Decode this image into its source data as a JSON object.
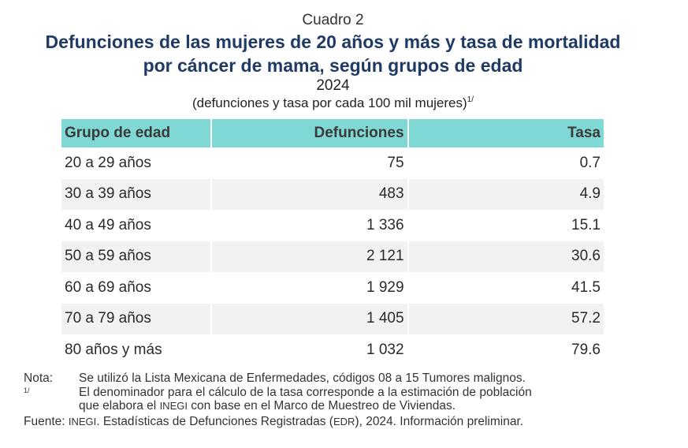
{
  "header": {
    "cuadro": "Cuadro 2",
    "title_line1": "Defunciones de las mujeres de 20 años y más y tasa de mortalidad",
    "title_line2": "por cáncer de mama, según grupos de edad",
    "year": "2024",
    "units": "(defunciones y tasa por cada 100 mil mujeres)",
    "units_ref": "1/"
  },
  "table": {
    "columns": [
      "Grupo de edad",
      "Defunciones",
      "Tasa"
    ],
    "rows": [
      {
        "grupo": "20 a 29 años",
        "defunciones": "75",
        "tasa": "0.7"
      },
      {
        "grupo": "30 a 39 años",
        "defunciones": "483",
        "tasa": "4.9"
      },
      {
        "grupo": "40 a 49 años",
        "defunciones": "1 336",
        "tasa": "15.1"
      },
      {
        "grupo": "50 a 59 años",
        "defunciones": "2 121",
        "tasa": "30.6"
      },
      {
        "grupo": "60 a 69 años",
        "defunciones": "1 929",
        "tasa": "41.5"
      },
      {
        "grupo": "70 a 79 años",
        "defunciones": "1 405",
        "tasa": "57.2"
      },
      {
        "grupo": "80 años y más",
        "defunciones": "1 032",
        "tasa": "79.6"
      }
    ]
  },
  "notes": {
    "nota_label": "Nota:",
    "nota_text": "Se utilizó la Lista Mexicana de Enfermedades, códigos 08 a 15 Tumores malignos.",
    "ref_mark": "1/",
    "ref_text_line1": "El denominador para el cálculo de la tasa corresponde a la estimación de población",
    "ref_text_line2_a": "que elabora el ",
    "ref_text_line2_org": "INEGI",
    "ref_text_line2_b": " con base en el Marco de Muestreo de Viviendas.",
    "fuente_label": "Fuente:",
    "fuente_org": "INEGI",
    "fuente_text_a": ". Estadísticas de Defunciones Registradas (",
    "fuente_abbr": "EDR",
    "fuente_text_b": "), 2024. Información preliminar."
  },
  "colors": {
    "header_fill": "#7fd8d4",
    "title": "#1f3a64",
    "alt_row": "#f2f2f2"
  }
}
